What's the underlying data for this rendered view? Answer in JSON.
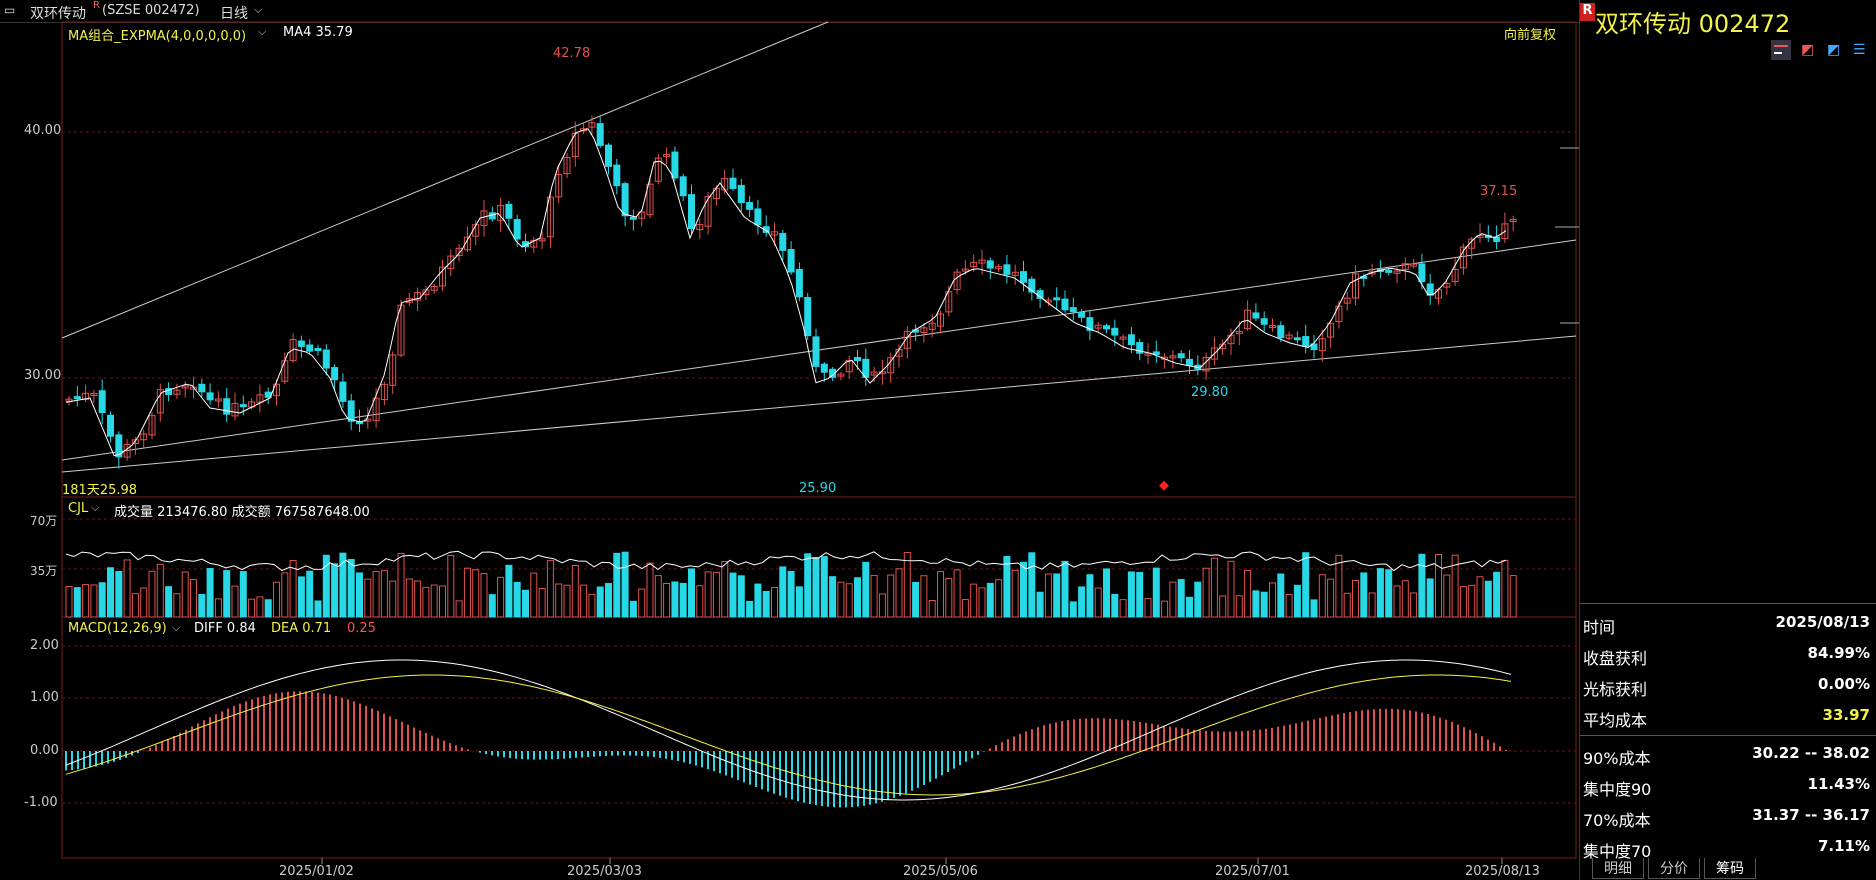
{
  "header": {
    "stock_name": "双环传动",
    "superscript": "R",
    "code_text": "(SZSE 002472)",
    "period": "日线",
    "adjust": "向前复权"
  },
  "overlays": {
    "main_indicator": "MA组合_EXPMA(4,0,0,0,0,0)",
    "ma4": "MA4 35.79",
    "volume_indicator": "CJL",
    "volume_values": "成交量 213476.80  成交额 767587648.00",
    "macd_indicator": "MACD(12,26,9)",
    "diff": "DIFF 0.84",
    "dea": "DEA 0.71",
    "macd_val": "0.25"
  },
  "price_axis": [
    "40.00",
    "30.00"
  ],
  "volume_axis": [
    "70万",
    "35万"
  ],
  "macd_axis": [
    "2.00",
    "1.00",
    "0.00",
    "-1.00"
  ],
  "date_axis": [
    "2025/01/02",
    "2025/03/03",
    "2025/05/06",
    "2025/07/01",
    "2025/08/13"
  ],
  "annotations": {
    "high1": "42.78",
    "high2": "37.15",
    "low1": "25.90",
    "low2": "29.80",
    "low0": "181天25.98"
  },
  "right_panel": {
    "title_badge": "R",
    "title": "双环传动  002472",
    "stats": [
      {
        "label": "时间",
        "value": "2025/08/13"
      },
      {
        "label": "收盘获利",
        "value": "84.99%"
      },
      {
        "label": "光标获利",
        "value": "0.00%"
      },
      {
        "label": "平均成本",
        "value": "33.97"
      },
      {
        "label": "90%成本",
        "value": "30.22 -- 38.02"
      },
      {
        "label": "集中度90",
        "value": "11.43%"
      },
      {
        "label": "70%成本",
        "value": "31.37 -- 36.17"
      },
      {
        "label": "集中度70",
        "value": "7.11%"
      }
    ],
    "tabs": [
      "明细",
      "分价",
      "筹码"
    ]
  },
  "colors": {
    "up": "#e0524f",
    "down": "#27d8e6",
    "accent_yellow": "#f3f34a",
    "grid": "#5a1a1a"
  }
}
